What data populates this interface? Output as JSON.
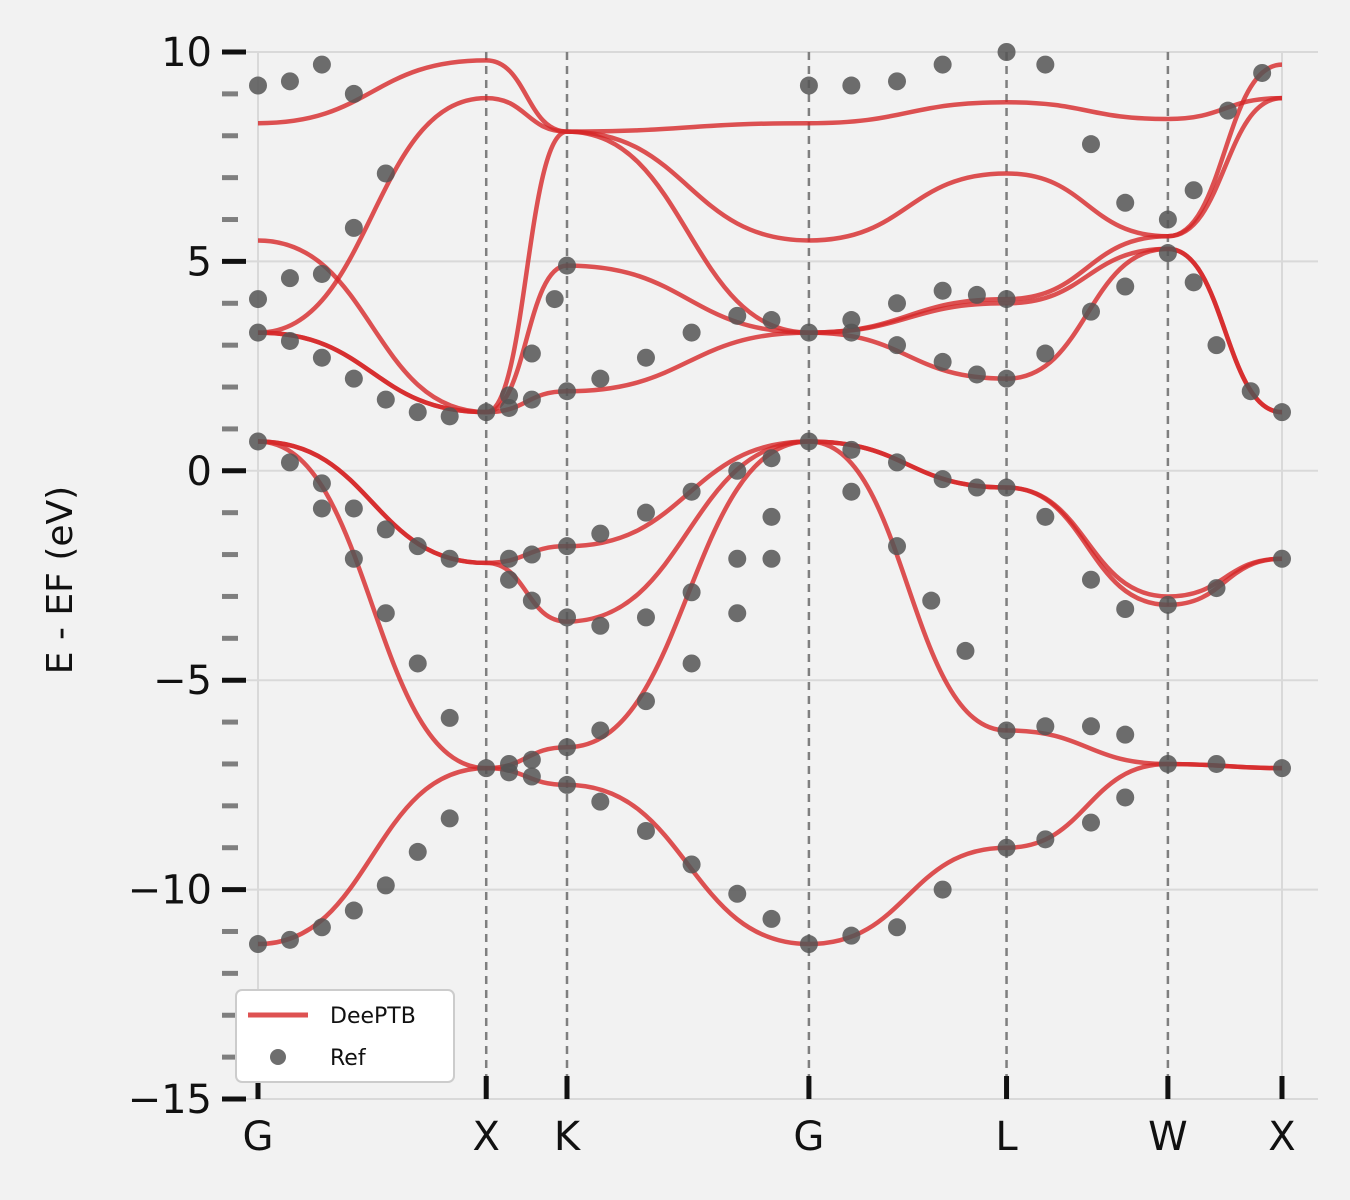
{
  "chart_data": {
    "type": "line",
    "ylabel": "E - EF (eV)",
    "ylim": [
      -15,
      10
    ],
    "yticks": [
      10,
      5,
      0,
      -5,
      -10,
      -15
    ],
    "ytick_labels": [
      "10",
      "5",
      "0",
      "−5",
      "−10",
      "−15"
    ],
    "xticks": [
      {
        "label": "G",
        "k": 0.0
      },
      {
        "label": "X",
        "k": 1.0
      },
      {
        "label": "K",
        "k": 1.354
      },
      {
        "label": "G",
        "k": 2.414
      },
      {
        "label": "L",
        "k": 3.28
      },
      {
        "label": "W",
        "k": 3.987
      },
      {
        "label": "X",
        "k": 4.487
      }
    ],
    "grid": true,
    "legend": {
      "placement": "lower-left",
      "entries": [
        "DeePTB",
        "Ref"
      ]
    },
    "colors": {
      "deeptb": "#d62728",
      "ref": "#555555",
      "grid": "#d9d9d9",
      "vline": "#7f7f7f",
      "background": "#f2f2f2"
    },
    "series": [
      {
        "name": "DeePTB",
        "style": "line",
        "bands": [
          {
            "k": [
              0,
              1.0,
              1.354,
              2.414,
              3.28,
              3.987,
              4.487
            ],
            "e": [
              -11.3,
              -7.1,
              -6.6,
              0.7,
              -0.4,
              -3.2,
              -2.1
            ]
          },
          {
            "k": [
              0,
              1.0,
              1.354,
              2.414,
              3.28,
              3.987,
              4.487
            ],
            "e": [
              0.7,
              -7.1,
              -7.5,
              -11.3,
              -9.0,
              -7.0,
              -7.1
            ]
          },
          {
            "k": [
              0,
              1.0,
              1.354,
              2.414,
              3.28,
              3.987,
              4.487
            ],
            "e": [
              0.7,
              -2.2,
              -1.8,
              0.7,
              -0.4,
              -3.0,
              -2.1
            ]
          },
          {
            "k": [
              0,
              1.0,
              1.354,
              2.414,
              3.28,
              3.987,
              4.487
            ],
            "e": [
              0.7,
              -2.2,
              -3.6,
              0.7,
              -6.2,
              -7.0,
              -7.1
            ]
          },
          {
            "k": [
              0,
              1.0,
              1.354,
              2.414,
              3.28,
              3.987,
              4.487
            ],
            "e": [
              3.3,
              1.4,
              1.9,
              3.3,
              2.2,
              5.3,
              1.4
            ]
          },
          {
            "k": [
              0,
              1.0,
              1.354,
              2.414,
              3.28,
              3.987,
              4.487
            ],
            "e": [
              3.3,
              1.4,
              4.9,
              3.3,
              4.0,
              5.3,
              1.4
            ]
          },
          {
            "k": [
              0,
              1.0,
              1.354,
              2.414,
              3.28,
              3.987,
              4.487
            ],
            "e": [
              3.3,
              8.9,
              8.1,
              3.3,
              4.1,
              5.6,
              9.7
            ]
          },
          {
            "k": [
              0,
              1.0,
              1.354,
              2.414,
              3.28,
              3.987,
              4.487
            ],
            "e": [
              5.5,
              1.4,
              8.1,
              5.5,
              7.1,
              5.6,
              8.9
            ]
          },
          {
            "k": [
              0,
              1.0,
              1.354,
              2.414,
              3.28,
              3.987,
              4.487
            ],
            "e": [
              8.3,
              9.8,
              8.1,
              8.3,
              8.8,
              8.4,
              8.9
            ]
          }
        ]
      },
      {
        "name": "Ref",
        "style": "points",
        "points": [
          {
            "k": 0.0,
            "e": -11.3
          },
          {
            "k": 0.14,
            "e": -11.2
          },
          {
            "k": 0.28,
            "e": -10.9
          },
          {
            "k": 0.42,
            "e": -10.5
          },
          {
            "k": 0.56,
            "e": -9.9
          },
          {
            "k": 0.7,
            "e": -9.1
          },
          {
            "k": 0.84,
            "e": -8.3
          },
          {
            "k": 1.0,
            "e": -7.1
          },
          {
            "k": 1.1,
            "e": -7.0
          },
          {
            "k": 1.2,
            "e": -6.9
          },
          {
            "k": 1.354,
            "e": -6.6
          },
          {
            "k": 1.5,
            "e": -6.2
          },
          {
            "k": 1.7,
            "e": -5.5
          },
          {
            "k": 1.9,
            "e": -4.6
          },
          {
            "k": 2.1,
            "e": -3.4
          },
          {
            "k": 2.25,
            "e": -2.1
          },
          {
            "k": 2.414,
            "e": 0.7
          },
          {
            "k": 0.0,
            "e": 0.7
          },
          {
            "k": 0.14,
            "e": 0.2
          },
          {
            "k": 0.28,
            "e": -0.9
          },
          {
            "k": 0.42,
            "e": -2.1
          },
          {
            "k": 0.56,
            "e": -3.4
          },
          {
            "k": 0.7,
            "e": -4.6
          },
          {
            "k": 0.84,
            "e": -5.9
          },
          {
            "k": 1.1,
            "e": -7.2
          },
          {
            "k": 1.2,
            "e": -7.3
          },
          {
            "k": 1.354,
            "e": -7.5
          },
          {
            "k": 1.5,
            "e": -7.9
          },
          {
            "k": 1.7,
            "e": -8.6
          },
          {
            "k": 1.9,
            "e": -9.4
          },
          {
            "k": 2.1,
            "e": -10.1
          },
          {
            "k": 2.25,
            "e": -10.7
          },
          {
            "k": 2.414,
            "e": -11.3
          },
          {
            "k": 0.28,
            "e": -0.3
          },
          {
            "k": 0.42,
            "e": -0.9
          },
          {
            "k": 0.56,
            "e": -1.4
          },
          {
            "k": 0.7,
            "e": -1.8
          },
          {
            "k": 0.84,
            "e": -2.1
          },
          {
            "k": 1.1,
            "e": -2.1
          },
          {
            "k": 1.2,
            "e": -2.0
          },
          {
            "k": 1.354,
            "e": -1.8
          },
          {
            "k": 1.5,
            "e": -1.5
          },
          {
            "k": 1.7,
            "e": -1.0
          },
          {
            "k": 1.9,
            "e": -0.5
          },
          {
            "k": 2.1,
            "e": 0.0
          },
          {
            "k": 2.25,
            "e": 0.3
          },
          {
            "k": 1.1,
            "e": -2.6
          },
          {
            "k": 1.2,
            "e": -3.1
          },
          {
            "k": 1.354,
            "e": -3.5
          },
          {
            "k": 1.5,
            "e": -3.7
          },
          {
            "k": 1.7,
            "e": -3.5
          },
          {
            "k": 1.9,
            "e": -2.9
          },
          {
            "k": 2.1,
            "e": -2.1
          },
          {
            "k": 2.25,
            "e": -1.1
          },
          {
            "k": 0.0,
            "e": 3.3
          },
          {
            "k": 0.14,
            "e": 3.1
          },
          {
            "k": 0.28,
            "e": 2.7
          },
          {
            "k": 0.42,
            "e": 2.2
          },
          {
            "k": 0.56,
            "e": 1.7
          },
          {
            "k": 0.7,
            "e": 1.4
          },
          {
            "k": 0.84,
            "e": 1.3
          },
          {
            "k": 1.0,
            "e": 1.4
          },
          {
            "k": 1.1,
            "e": 1.5
          },
          {
            "k": 1.2,
            "e": 1.7
          },
          {
            "k": 1.354,
            "e": 1.9
          },
          {
            "k": 1.5,
            "e": 2.2
          },
          {
            "k": 1.7,
            "e": 2.7
          },
          {
            "k": 1.9,
            "e": 3.3
          },
          {
            "k": 2.1,
            "e": 3.7
          },
          {
            "k": 2.25,
            "e": 3.6
          },
          {
            "k": 2.414,
            "e": 3.3
          },
          {
            "k": 1.1,
            "e": 1.8
          },
          {
            "k": 1.2,
            "e": 2.8
          },
          {
            "k": 1.3,
            "e": 4.1
          },
          {
            "k": 1.354,
            "e": 4.9
          },
          {
            "k": 0.0,
            "e": 9.2
          },
          {
            "k": 0.14,
            "e": 9.3
          },
          {
            "k": 0.28,
            "e": 9.7
          },
          {
            "k": 0.42,
            "e": 9.0
          },
          {
            "k": 0.56,
            "e": 7.1
          },
          {
            "k": 0.42,
            "e": 5.8
          },
          {
            "k": 0.28,
            "e": 4.7
          },
          {
            "k": 0.14,
            "e": 4.6
          },
          {
            "k": 0.0,
            "e": 4.1
          },
          {
            "k": 2.6,
            "e": 3.6
          },
          {
            "k": 2.8,
            "e": 4.0
          },
          {
            "k": 3.0,
            "e": 4.3
          },
          {
            "k": 3.15,
            "e": 4.2
          },
          {
            "k": 3.28,
            "e": 4.1
          },
          {
            "k": 2.6,
            "e": 3.3
          },
          {
            "k": 2.8,
            "e": 3.0
          },
          {
            "k": 3.0,
            "e": 2.6
          },
          {
            "k": 3.15,
            "e": 2.3
          },
          {
            "k": 3.28,
            "e": 2.2
          },
          {
            "k": 2.6,
            "e": 0.5
          },
          {
            "k": 2.8,
            "e": 0.2
          },
          {
            "k": 3.0,
            "e": -0.2
          },
          {
            "k": 3.15,
            "e": -0.4
          },
          {
            "k": 3.28,
            "e": -0.4
          },
          {
            "k": 2.6,
            "e": -0.5
          },
          {
            "k": 2.8,
            "e": -1.8
          },
          {
            "k": 2.95,
            "e": -3.1
          },
          {
            "k": 3.1,
            "e": -4.3
          },
          {
            "k": 3.28,
            "e": -6.2
          },
          {
            "k": 3.45,
            "e": -6.1
          },
          {
            "k": 3.65,
            "e": -6.1
          },
          {
            "k": 3.8,
            "e": -6.3
          },
          {
            "k": 3.987,
            "e": -7.0
          },
          {
            "k": 4.2,
            "e": -7.0
          },
          {
            "k": 4.487,
            "e": -7.1
          },
          {
            "k": 2.6,
            "e": -11.1
          },
          {
            "k": 2.8,
            "e": -10.9
          },
          {
            "k": 3.0,
            "e": -10.0
          },
          {
            "k": 3.28,
            "e": -9.0
          },
          {
            "k": 3.45,
            "e": -8.8
          },
          {
            "k": 3.65,
            "e": -8.4
          },
          {
            "k": 3.8,
            "e": -7.8
          },
          {
            "k": 3.45,
            "e": -1.1
          },
          {
            "k": 3.65,
            "e": -2.6
          },
          {
            "k": 3.8,
            "e": -3.3
          },
          {
            "k": 3.987,
            "e": -3.2
          },
          {
            "k": 4.2,
            "e": -2.8
          },
          {
            "k": 4.487,
            "e": -2.1
          },
          {
            "k": 3.45,
            "e": 2.8
          },
          {
            "k": 3.65,
            "e": 3.8
          },
          {
            "k": 3.8,
            "e": 4.4
          },
          {
            "k": 3.987,
            "e": 5.2
          },
          {
            "k": 4.1,
            "e": 4.5
          },
          {
            "k": 4.2,
            "e": 3.0
          },
          {
            "k": 4.35,
            "e": 1.9
          },
          {
            "k": 4.487,
            "e": 1.4
          },
          {
            "k": 4.1,
            "e": 6.7
          },
          {
            "k": 4.25,
            "e": 8.6
          },
          {
            "k": 4.4,
            "e": 9.5
          },
          {
            "k": 2.414,
            "e": 9.2
          },
          {
            "k": 2.6,
            "e": 9.2
          },
          {
            "k": 2.8,
            "e": 9.3
          },
          {
            "k": 3.0,
            "e": 9.7
          },
          {
            "k": 3.28,
            "e": 10.0
          },
          {
            "k": 3.45,
            "e": 9.7
          },
          {
            "k": 3.65,
            "e": 7.8
          },
          {
            "k": 3.8,
            "e": 6.4
          },
          {
            "k": 3.987,
            "e": 6.0
          }
        ]
      }
    ]
  }
}
